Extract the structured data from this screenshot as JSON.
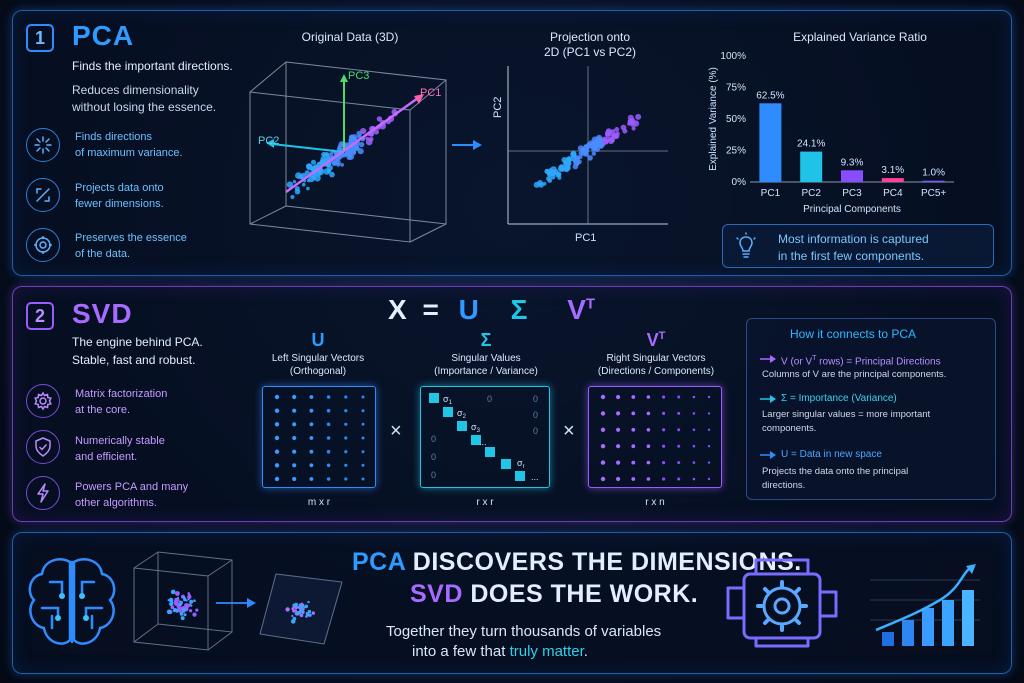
{
  "pca": {
    "badge": "1",
    "title": "PCA",
    "tagline": "Finds the important directions.",
    "desc_line1": "Reduces dimensionality",
    "desc_line2": "without losing the essence.",
    "features": [
      {
        "line1": "Finds directions",
        "line2": "of maximum variance.",
        "icon": "sparkle-icon"
      },
      {
        "line1": "Projects data onto",
        "line2": "fewer dimensions.",
        "icon": "expand-arrows-icon"
      },
      {
        "line1": "Preserves the essence",
        "line2": "of the data.",
        "icon": "target-icon"
      }
    ],
    "plot3d": {
      "title": "Original Data (3D)",
      "axis_pc1": "PC1",
      "axis_pc2": "PC2",
      "axis_pc3": "PC3"
    },
    "plot2d": {
      "title_line1": "Projection onto",
      "title_line2": "2D (PC1 vs PC2)",
      "xlabel": "PC1",
      "ylabel": "PC2"
    },
    "tip": {
      "line1": "Most information is captured",
      "line2": "in the first few components.",
      "icon": "lightbulb-icon"
    }
  },
  "chart_data": {
    "type": "bar",
    "title": "Explained Variance Ratio",
    "xlabel": "Principal Components",
    "ylabel": "Explained Variance (%)",
    "categories": [
      "PC1",
      "PC2",
      "PC3",
      "PC4",
      "PC5+"
    ],
    "values": [
      62.5,
      24.1,
      9.3,
      3.1,
      1.0
    ],
    "value_labels": [
      "62.5%",
      "24.1%",
      "9.3%",
      "3.1%",
      "1.0%"
    ],
    "colors": [
      "#2f8cff",
      "#1fc3e8",
      "#8a4cff",
      "#ff3f9a",
      "#7a5cff"
    ],
    "ylim": [
      0,
      100
    ],
    "yticks": [
      "0%",
      "25%",
      "50%",
      "75%",
      "100%"
    ],
    "grid": false
  },
  "svd": {
    "badge": "2",
    "title": "SVD",
    "tagline_line1": "The engine behind PCA.",
    "tagline_line2": "Stable, fast and robust.",
    "equation": {
      "x": "X",
      "eq": "=",
      "u": "U",
      "sigma": "Σ",
      "v": "V",
      "sup": "T"
    },
    "features": [
      {
        "line1": "Matrix factorization",
        "line2": "at the core.",
        "icon": "gear-icon"
      },
      {
        "line1": "Numerically stable",
        "line2": "and efficient.",
        "icon": "shield-check-icon"
      },
      {
        "line1": "Powers PCA and many",
        "line2": "other algorithms.",
        "icon": "lightning-icon"
      }
    ],
    "matrices": [
      {
        "title": "U",
        "sub1": "Left Singular Vectors",
        "sub2": "(Orthogonal)",
        "dim": "m x r"
      },
      {
        "title": "Σ",
        "sub1": "Singular Values",
        "sub2": "(Importance / Variance)",
        "dim": "r x r"
      },
      {
        "title": "V",
        "title_sup": "T",
        "sub1": "Right Singular Vectors",
        "sub2": "(Directions / Components)",
        "dim": "r x n"
      }
    ],
    "sigma_labels": [
      "σ",
      "σ",
      "σ",
      "σ"
    ],
    "sigma_subs": [
      "1",
      "2",
      "3",
      "r"
    ],
    "zero": "0",
    "ellipsis": "...",
    "times": "×",
    "connection": {
      "title": "How it connects to PCA",
      "items": [
        {
          "head_pre": "V (or V",
          "head_sup": "T",
          "head_post": " rows) = Principal Directions",
          "body_line1": "Columns of V are the principal components.",
          "body_line2": ""
        },
        {
          "head_pre": "Σ = Importance (Variance)",
          "head_sup": "",
          "head_post": "",
          "body_line1": "Larger singular values = more important",
          "body_line2": "components."
        },
        {
          "head_pre": "U = Data in new space",
          "head_sup": "",
          "head_post": "",
          "body_line1": "Projects the data onto the principal",
          "body_line2": "directions."
        }
      ]
    }
  },
  "bottom": {
    "line1_a": "PCA",
    "line1_b": " DISCOVERS THE DIMENSIONS.",
    "line2_a": "SVD",
    "line2_b": " DOES THE WORK.",
    "sub_line1": "Together they turn thousands of variables",
    "sub_line2_a": "into a few that ",
    "sub_line2_b": "truly matter",
    "sub_line2_c": ".",
    "icons": [
      "brain-circuit-icon",
      "data-cube-icon",
      "projection-plane-icon",
      "engine-gear-icon",
      "growth-chart-icon"
    ]
  },
  "colors": {
    "blue": "#2f8cff",
    "cyan": "#1fc3e8",
    "purple": "#8a4cff",
    "pink": "#ff3f9a",
    "green": "#4cdc6c"
  }
}
